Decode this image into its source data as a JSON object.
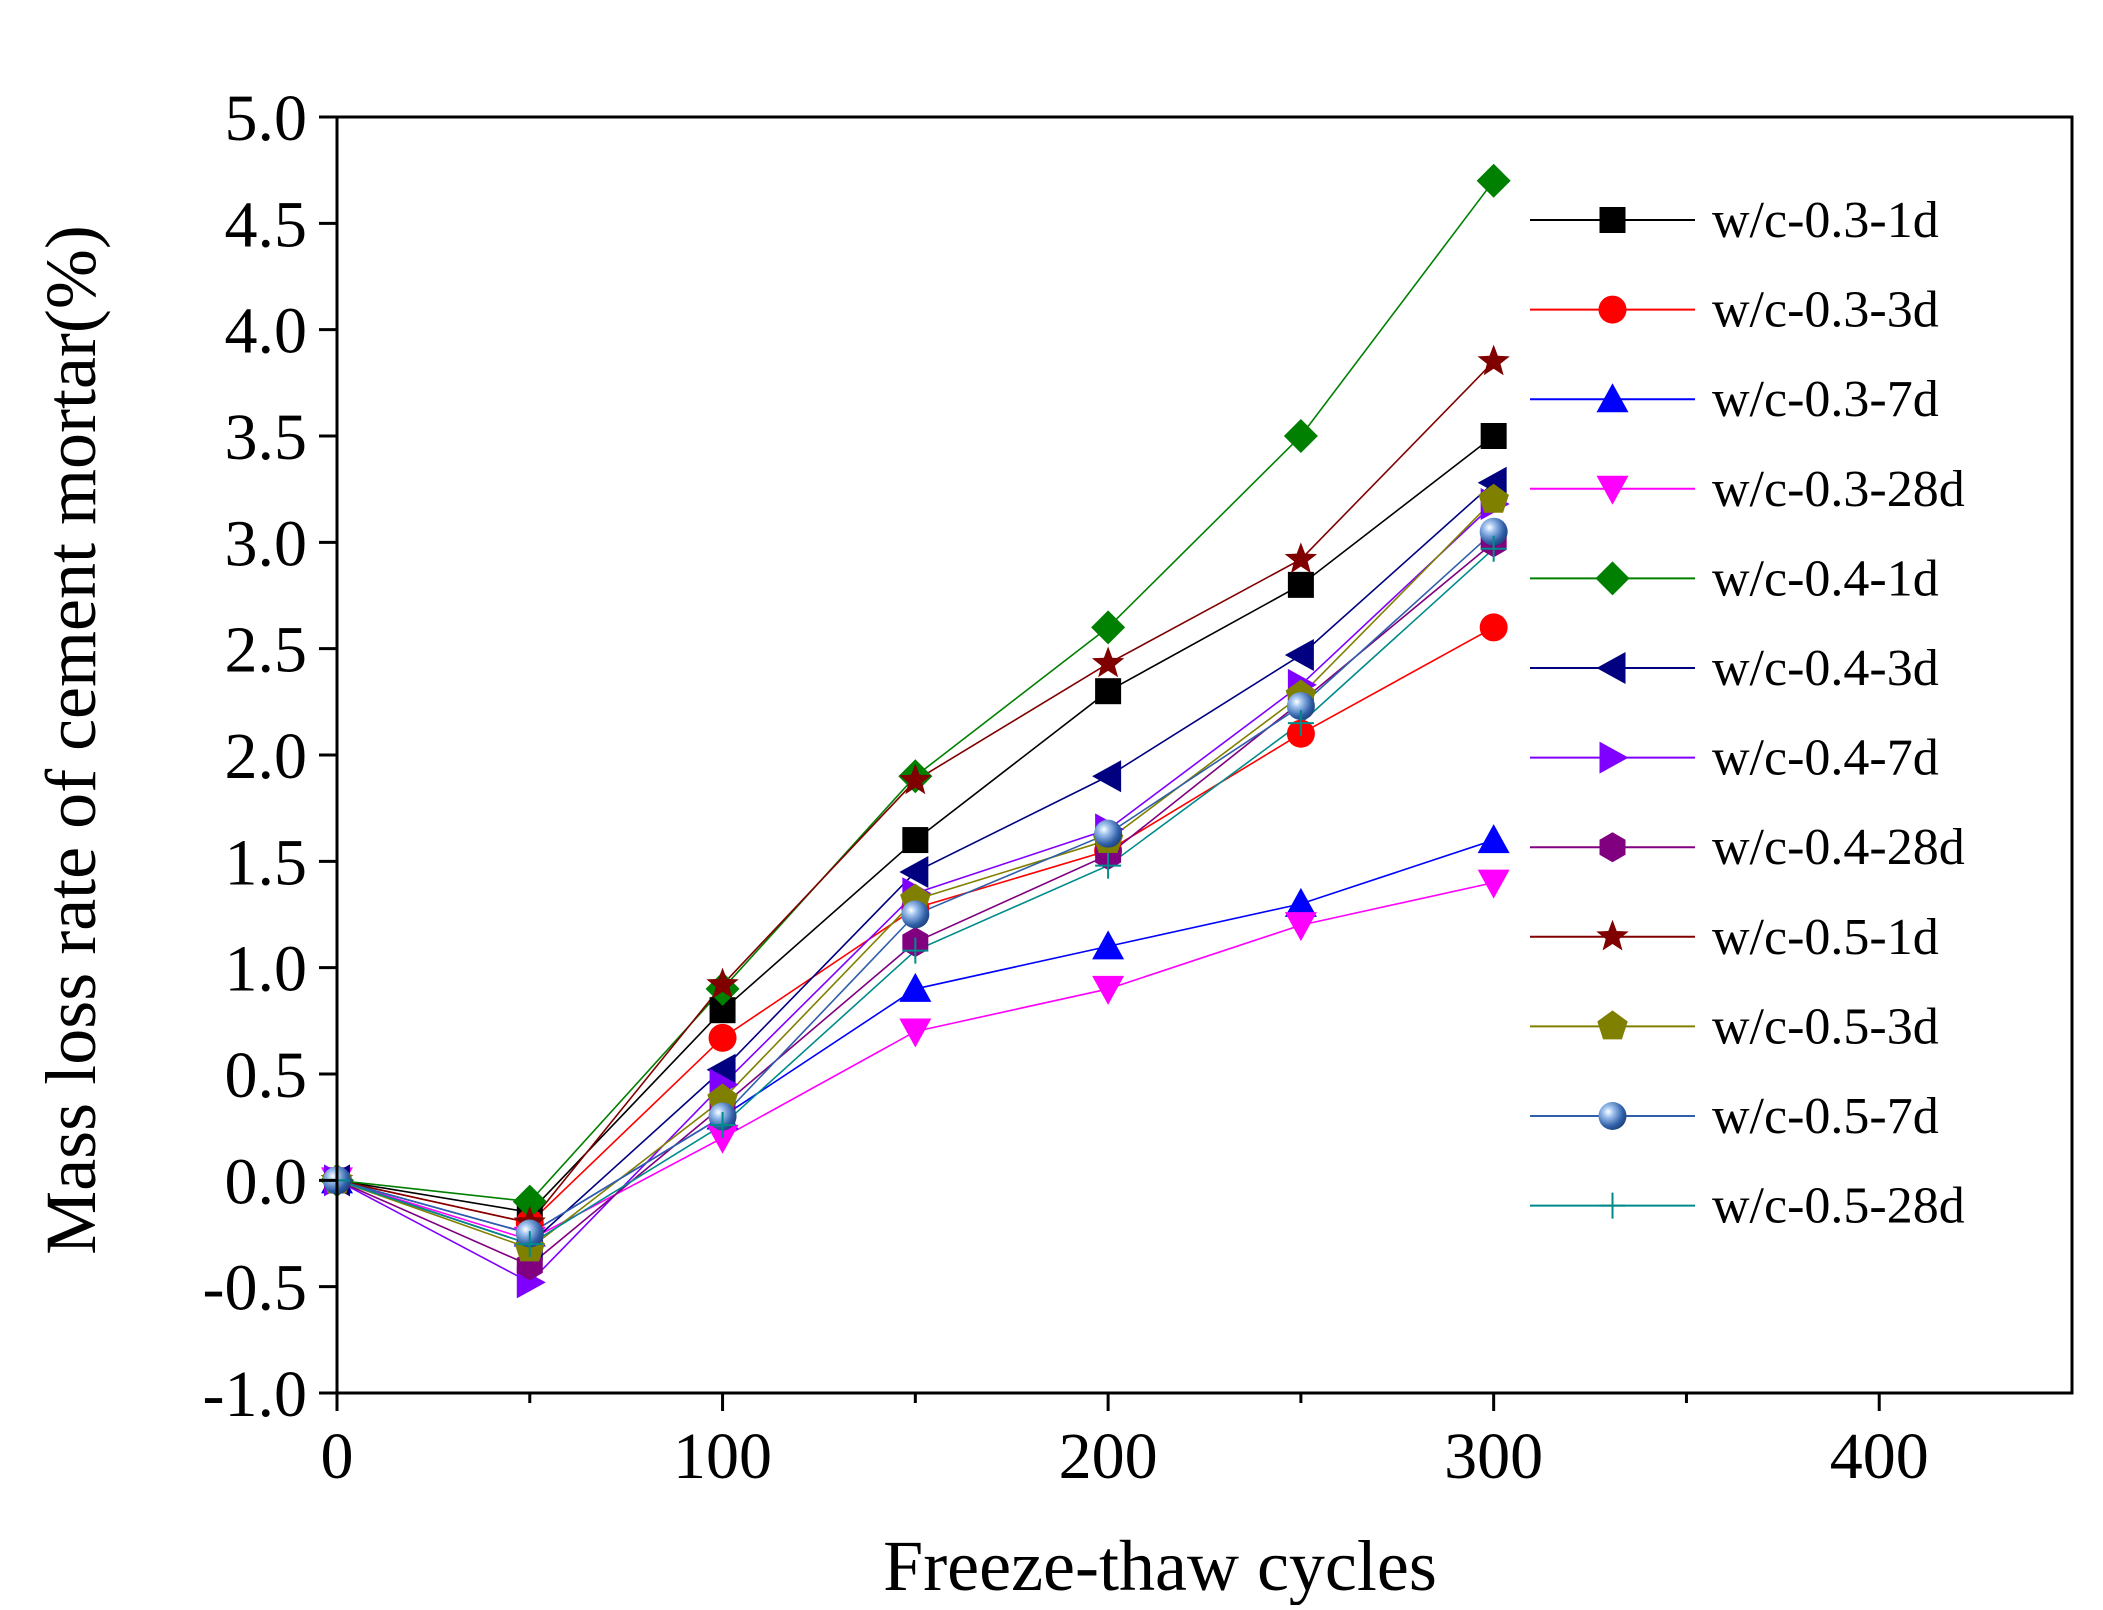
{
  "chart_data": {
    "type": "line",
    "title": "",
    "xlabel": "Freeze-thaw cycles",
    "ylabel": "Mass loss rate of cement mortar(%)",
    "xlim": [
      0,
      450
    ],
    "ylim": [
      -1.0,
      5.0
    ],
    "xticks": [
      0,
      100,
      200,
      300,
      400
    ],
    "xtick_labels": [
      "0",
      "100",
      "200",
      "300",
      "400"
    ],
    "yticks": [
      -1.0,
      -0.5,
      0.0,
      0.5,
      1.0,
      1.5,
      2.0,
      2.5,
      3.0,
      3.5,
      4.0,
      4.5,
      5.0
    ],
    "ytick_labels": [
      "-1.0",
      "-0.5",
      "0.0",
      "0.5",
      "1.0",
      "1.5",
      "2.0",
      "2.5",
      "3.0",
      "3.5",
      "4.0",
      "4.5",
      "5.0"
    ],
    "grid": false,
    "legend_position": "right",
    "x": [
      0,
      50,
      100,
      150,
      200,
      250,
      300
    ],
    "series": [
      {
        "name": "w/c-0.3-1d",
        "color": "#000000",
        "marker": "square",
        "values": [
          0,
          -0.15,
          0.8,
          1.6,
          2.3,
          2.8,
          3.5
        ]
      },
      {
        "name": "w/c-0.3-3d",
        "color": "#ff0000",
        "marker": "circle",
        "values": [
          0,
          -0.2,
          0.67,
          1.28,
          1.55,
          2.1,
          2.6
        ]
      },
      {
        "name": "w/c-0.3-7d",
        "color": "#0000ff",
        "marker": "triangle-up",
        "values": [
          0,
          -0.25,
          0.3,
          0.9,
          1.1,
          1.3,
          1.6
        ]
      },
      {
        "name": "w/c-0.3-28d",
        "color": "#ff00ff",
        "marker": "triangle-down",
        "values": [
          0,
          -0.28,
          0.2,
          0.7,
          0.9,
          1.2,
          1.4
        ]
      },
      {
        "name": "w/c-0.4-1d",
        "color": "#008000",
        "marker": "diamond",
        "values": [
          0,
          -0.1,
          0.9,
          1.9,
          2.6,
          3.5,
          4.7
        ]
      },
      {
        "name": "w/c-0.4-3d",
        "color": "#000080",
        "marker": "triangle-left",
        "values": [
          0,
          -0.3,
          0.52,
          1.45,
          1.9,
          2.47,
          3.28
        ]
      },
      {
        "name": "w/c-0.4-7d",
        "color": "#8000ff",
        "marker": "triangle-right",
        "values": [
          0,
          -0.48,
          0.45,
          1.35,
          1.65,
          2.33,
          3.18
        ]
      },
      {
        "name": "w/c-0.4-28d",
        "color": "#800080",
        "marker": "hexagon",
        "values": [
          0,
          -0.4,
          0.35,
          1.12,
          1.53,
          2.25,
          3.0
        ]
      },
      {
        "name": "w/c-0.5-1d",
        "color": "#800000",
        "marker": "star",
        "values": [
          0,
          -0.2,
          0.92,
          1.88,
          2.43,
          2.92,
          3.85
        ]
      },
      {
        "name": "w/c-0.5-3d",
        "color": "#808000",
        "marker": "pentagon",
        "values": [
          0,
          -0.32,
          0.38,
          1.32,
          1.6,
          2.28,
          3.2
        ]
      },
      {
        "name": "w/c-0.5-7d",
        "color": "#2f5fa8",
        "marker": "sphere",
        "values": [
          0,
          -0.25,
          0.3,
          1.25,
          1.63,
          2.23,
          3.05
        ]
      },
      {
        "name": "w/c-0.5-28d",
        "color": "#008b8b",
        "marker": "plus",
        "values": [
          0,
          -0.3,
          0.26,
          1.08,
          1.48,
          2.15,
          2.97
        ]
      }
    ]
  }
}
